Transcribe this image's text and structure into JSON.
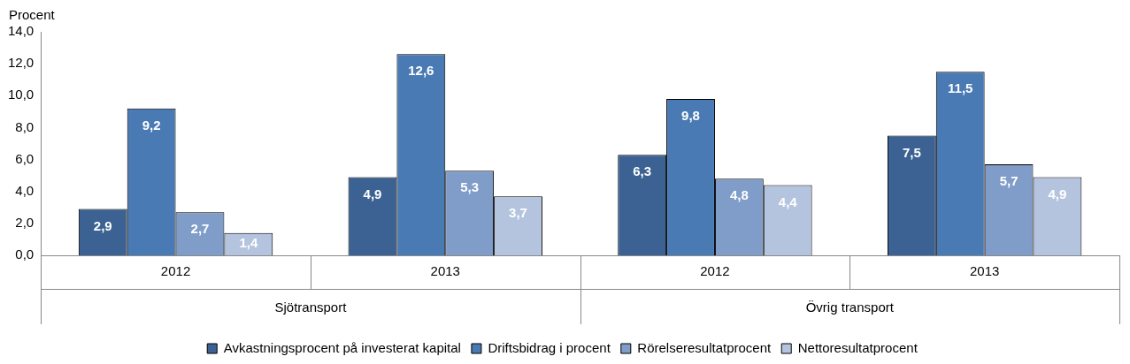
{
  "chart_data": {
    "type": "bar",
    "ylabel": "Procent",
    "categories": [
      "2012",
      "2013",
      "2012",
      "2013"
    ],
    "annotations": [
      "Sjötransport",
      "Övrig transport"
    ],
    "series": [
      {
        "name": "Avkastningsprocent på investerat kapital",
        "color": "#3b6292",
        "values": [
          2.9,
          4.9,
          6.3,
          7.5
        ],
        "value_labels": [
          "2,9",
          "4,9",
          "6,3",
          "7,5"
        ]
      },
      {
        "name": "Driftsbidrag i procent",
        "color": "#4a7ab4",
        "values": [
          9.2,
          12.6,
          9.8,
          11.5
        ],
        "value_labels": [
          "9,2",
          "12,6",
          "9,8",
          "11,5"
        ]
      },
      {
        "name": "Rörelseresultatprocent",
        "color": "#809dc9",
        "values": [
          2.7,
          5.3,
          4.8,
          5.7
        ],
        "value_labels": [
          "2,7",
          "5,3",
          "4,8",
          "5,7"
        ]
      },
      {
        "name": "Nettoresultatprocent",
        "color": "#b5c4de",
        "values": [
          1.4,
          3.7,
          4.4,
          4.9
        ],
        "value_labels": [
          "1,4",
          "3,7",
          "4,4",
          "4,9"
        ]
      }
    ],
    "ylim": [
      0,
      14
    ],
    "yticks": [
      {
        "value": 0,
        "label": "0,0"
      },
      {
        "value": 2,
        "label": "2,0"
      },
      {
        "value": 4,
        "label": "4,0"
      },
      {
        "value": 6,
        "label": "6,0"
      },
      {
        "value": 8,
        "label": "8,0"
      },
      {
        "value": 10,
        "label": "10,0"
      },
      {
        "value": 12,
        "label": "12,0"
      },
      {
        "value": 14,
        "label": "14,0"
      }
    ],
    "grid": false,
    "legend": "bottom"
  }
}
